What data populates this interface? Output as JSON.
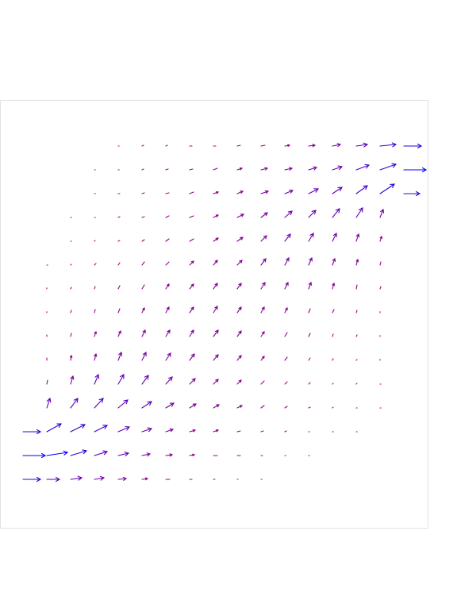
{
  "chart_data": {
    "type": "quiver",
    "xlim": [
      0,
      540
    ],
    "ylim": [
      0,
      420
    ],
    "colors": [
      "#c0006a",
      "#0000ff"
    ],
    "series": [
      {
        "y": 420,
        "x": [
          120,
          150,
          180,
          210,
          240,
          270,
          300,
          330,
          360,
          390,
          420,
          450,
          480
        ],
        "u": [
          1,
          2,
          2,
          3,
          3,
          4,
          5,
          6,
          8,
          10,
          14,
          20,
          22
        ],
        "v": [
          0,
          1,
          1,
          0,
          0,
          1,
          1,
          1,
          1,
          2,
          2,
          2,
          0
        ]
      },
      {
        "y": 390,
        "x": [
          90,
          120,
          150,
          180,
          210,
          240,
          270,
          300,
          330,
          360,
          390,
          420,
          450,
          480
        ],
        "u": [
          1,
          1,
          2,
          3,
          4,
          5,
          6,
          8,
          9,
          10,
          12,
          16,
          20,
          28
        ],
        "v": [
          0,
          0,
          1,
          1,
          1,
          2,
          2,
          2,
          2,
          3,
          4,
          6,
          7,
          0
        ]
      },
      {
        "y": 360,
        "x": [
          90,
          120,
          150,
          180,
          210,
          240,
          270,
          300,
          330,
          360,
          390,
          420,
          450,
          480
        ],
        "u": [
          1,
          2,
          3,
          4,
          5,
          6,
          7,
          9,
          10,
          12,
          12,
          14,
          18,
          20
        ],
        "v": [
          0,
          0,
          1,
          1,
          2,
          2,
          3,
          3,
          4,
          6,
          8,
          10,
          12,
          0
        ]
      },
      {
        "y": 330,
        "x": [
          60,
          90,
          120,
          150,
          180,
          210,
          240,
          270,
          300,
          330,
          360,
          390,
          420,
          450
        ],
        "u": [
          1,
          1,
          2,
          3,
          4,
          5,
          6,
          8,
          8,
          9,
          9,
          9,
          8,
          4
        ],
        "v": [
          0,
          0,
          1,
          1,
          2,
          2,
          3,
          4,
          6,
          8,
          9,
          11,
          12,
          10
        ]
      },
      {
        "y": 300,
        "x": [
          60,
          90,
          120,
          150,
          180,
          210,
          240,
          270,
          300,
          330,
          360,
          390,
          420,
          450
        ],
        "u": [
          1,
          1,
          2,
          3,
          4,
          5,
          6,
          7,
          7,
          7,
          6,
          5,
          3,
          2
        ],
        "v": [
          0,
          1,
          1,
          2,
          3,
          3,
          4,
          5,
          7,
          9,
          10,
          10,
          9,
          6
        ]
      },
      {
        "y": 270,
        "x": [
          30,
          60,
          90,
          120,
          150,
          180,
          210,
          240,
          270,
          300,
          330,
          360,
          390,
          420,
          450
        ],
        "u": [
          1,
          1,
          2,
          2,
          3,
          4,
          5,
          5,
          6,
          6,
          5,
          4,
          3,
          2,
          1
        ],
        "v": [
          0,
          1,
          2,
          3,
          4,
          4,
          5,
          6,
          6,
          8,
          9,
          9,
          8,
          7,
          4
        ]
      },
      {
        "y": 240,
        "x": [
          30,
          60,
          90,
          120,
          150,
          180,
          210,
          240,
          270,
          300,
          330,
          360,
          390,
          420,
          450
        ],
        "u": [
          0,
          1,
          1,
          2,
          3,
          4,
          5,
          5,
          5,
          5,
          4,
          3,
          2,
          1,
          1
        ],
        "v": [
          1,
          2,
          3,
          4,
          5,
          6,
          6,
          7,
          7,
          8,
          8,
          8,
          7,
          5,
          3
        ]
      },
      {
        "y": 210,
        "x": [
          30,
          60,
          90,
          120,
          150,
          180,
          210,
          240,
          270,
          300,
          330,
          360,
          390,
          420,
          450
        ],
        "u": [
          0,
          1,
          1,
          2,
          3,
          4,
          5,
          5,
          5,
          4,
          3,
          2,
          2,
          1,
          0
        ],
        "v": [
          1,
          3,
          4,
          5,
          6,
          7,
          7,
          8,
          7,
          7,
          6,
          5,
          4,
          3,
          1
        ]
      },
      {
        "y": 180,
        "x": [
          30,
          60,
          90,
          120,
          150,
          180,
          210,
          240,
          270,
          300,
          330,
          360,
          390,
          420,
          450
        ],
        "u": [
          0,
          1,
          2,
          3,
          4,
          5,
          5,
          6,
          5,
          4,
          3,
          2,
          1,
          1,
          0
        ],
        "v": [
          2,
          4,
          6,
          7,
          8,
          8,
          8,
          8,
          7,
          6,
          5,
          4,
          3,
          2,
          1
        ]
      },
      {
        "y": 150,
        "x": [
          30,
          60,
          90,
          120,
          150,
          180,
          210,
          240,
          270,
          300,
          330,
          360,
          390,
          420,
          450
        ],
        "u": [
          0,
          1,
          2,
          4,
          5,
          6,
          6,
          6,
          5,
          4,
          3,
          2,
          1,
          1,
          0
        ],
        "v": [
          3,
          6,
          8,
          10,
          10,
          9,
          8,
          7,
          6,
          5,
          4,
          3,
          2,
          1,
          1
        ]
      },
      {
        "y": 120,
        "x": [
          30,
          60,
          90,
          120,
          150,
          180,
          210,
          240,
          270,
          300,
          330,
          360,
          390,
          420,
          450
        ],
        "u": [
          1,
          3,
          5,
          7,
          8,
          8,
          7,
          6,
          5,
          4,
          3,
          2,
          1,
          1,
          1
        ],
        "v": [
          5,
          10,
          12,
          12,
          11,
          9,
          7,
          6,
          5,
          4,
          3,
          2,
          1,
          1,
          0
        ]
      },
      {
        "y": 90,
        "x": [
          30,
          60,
          90,
          120,
          150,
          180,
          210,
          240,
          270,
          300,
          330,
          360,
          390,
          420,
          450
        ],
        "u": [
          4,
          9,
          11,
          12,
          12,
          10,
          8,
          7,
          6,
          4,
          3,
          2,
          1,
          1,
          1
        ],
        "v": [
          12,
          12,
          12,
          10,
          8,
          6,
          5,
          4,
          3,
          3,
          2,
          1,
          1,
          0,
          0
        ]
      },
      {
        "y": 60,
        "x": [
          0,
          30,
          60,
          90,
          120,
          150,
          180,
          210,
          240,
          270,
          300,
          330,
          360,
          390,
          420
        ],
        "u": [
          22,
          18,
          18,
          16,
          14,
          12,
          9,
          7,
          6,
          4,
          3,
          2,
          1,
          1,
          1
        ],
        "v": [
          0,
          10,
          9,
          8,
          6,
          4,
          3,
          2,
          2,
          1,
          1,
          1,
          0,
          0,
          0
        ]
      },
      {
        "y": 30,
        "x": [
          0,
          30,
          60,
          90,
          120,
          150,
          180,
          210,
          240,
          270,
          300,
          330,
          360
        ],
        "u": [
          28,
          26,
          20,
          16,
          13,
          10,
          8,
          6,
          5,
          4,
          2,
          1,
          1
        ],
        "v": [
          0,
          4,
          6,
          5,
          3,
          2,
          1,
          1,
          0,
          0,
          0,
          0,
          0
        ]
      },
      {
        "y": 0,
        "x": [
          0,
          30,
          60,
          90,
          120,
          150,
          180,
          210,
          240,
          270,
          300
        ],
        "u": [
          22,
          16,
          14,
          12,
          10,
          7,
          5,
          3,
          2,
          1,
          1
        ],
        "v": [
          0,
          0,
          2,
          2,
          1,
          1,
          0,
          0,
          0,
          0,
          0
        ]
      }
    ]
  }
}
